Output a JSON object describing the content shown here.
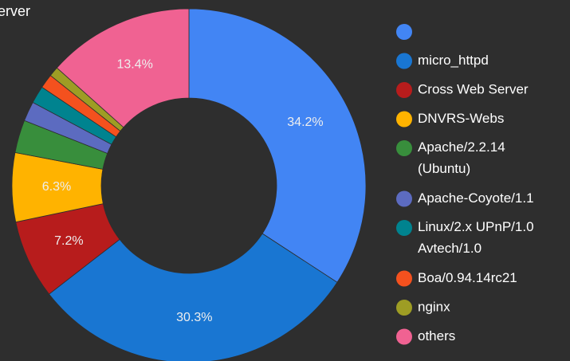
{
  "chart_data": {
    "type": "pie",
    "title": "erver",
    "categories": [
      null,
      "micro_httpd",
      "Cross Web Server",
      "DNVRS-Webs",
      "Apache/2.2.14 (Ubuntu)",
      "Apache-Coyote/1.1",
      "Linux/2.x UPnP/1.0 Avtech/1.0",
      "Boa/0.94.14rc21",
      "nginx",
      "others"
    ],
    "values": [
      34.2,
      30.3,
      7.2,
      6.3,
      3.0,
      1.8,
      1.6,
      1.3,
      0.9,
      13.4
    ],
    "value_labels": [
      "34.2%",
      "30.3%",
      "7.2%",
      "6.3%",
      null,
      null,
      null,
      null,
      null,
      "13.4%"
    ],
    "colors": [
      "#4285f4",
      "#1976d2",
      "#b71c1c",
      "#ffb300",
      "#388e3c",
      "#5c6bc0",
      "#00838f",
      "#f4511e",
      "#9e9d24",
      "#f06292"
    ],
    "donut": true
  }
}
